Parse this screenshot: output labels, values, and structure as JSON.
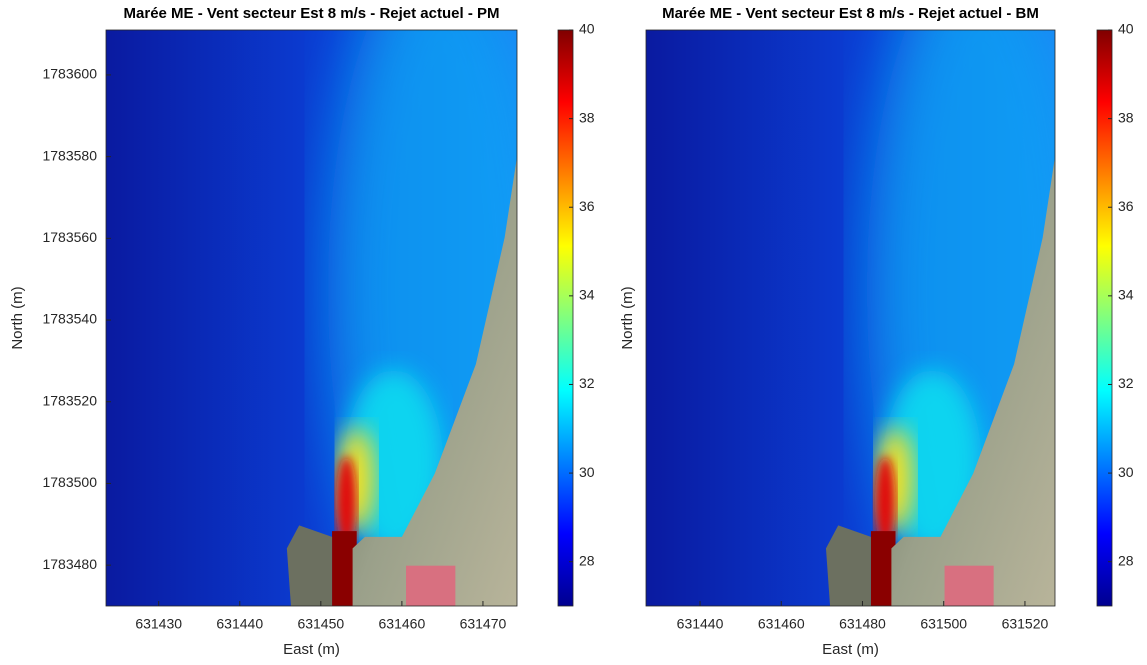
{
  "chart_data": [
    {
      "type": "heatmap",
      "title": "Marée ME - Vent secteur Est 8 m/s - Rejet actuel - PM",
      "xlabel": "East (m)",
      "ylabel": "North (m)",
      "xlim": [
        631423.5,
        631474.2
      ],
      "xticks": [
        631430,
        631440,
        631450,
        631460,
        631470
      ],
      "ylim": [
        1783470,
        1783611
      ],
      "yticks": [
        1783480,
        1783500,
        1783520,
        1783540,
        1783560,
        1783580,
        1783600
      ],
      "colormap": "jet",
      "clim": [
        27,
        40
      ],
      "cticks": [
        28,
        30,
        32,
        34,
        36,
        38,
        40
      ]
    },
    {
      "type": "heatmap",
      "title": "Marée ME - Vent secteur Est 8 m/s - Rejet actuel - BM",
      "xlabel": "East (m)",
      "ylabel": "North (m)",
      "xlim": [
        631426.7,
        631527.4
      ],
      "xticks": [
        631440,
        631460,
        631480,
        631500,
        631520
      ],
      "ylim": [
        1783470,
        1783611
      ],
      "colormap": "jet",
      "clim": [
        27,
        40
      ],
      "cticks": [
        28,
        30,
        32,
        34,
        36,
        38,
        40
      ]
    }
  ]
}
